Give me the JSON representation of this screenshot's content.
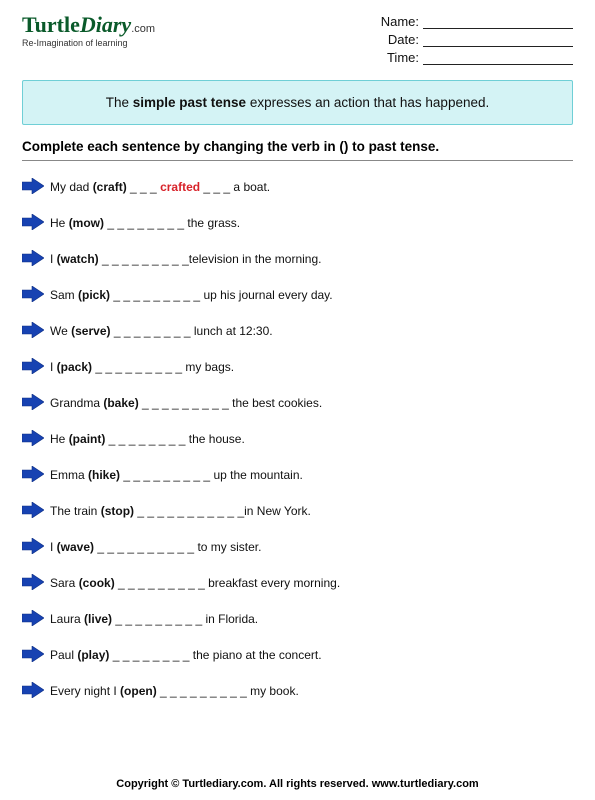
{
  "logo": {
    "word1": "Turtle",
    "word2": "Diary",
    "dotcom": ".com",
    "tagline": "Re-Imagination of learning"
  },
  "fields": {
    "name_label": "Name:",
    "date_label": "Date:",
    "time_label": "Time:"
  },
  "rule": {
    "pre": "The ",
    "bold": "simple past tense",
    "post": " expresses an action that has happened."
  },
  "instruction": "Complete each sentence by changing the verb in () to past tense.",
  "colors": {
    "arrow_fill": "#1742b2",
    "arrow_stroke": "#0e2f85",
    "box_bg": "#d4f3f5",
    "box_border": "#6fcfd6",
    "answer": "#d8232a",
    "logo": "#0a5a2a"
  },
  "items": [
    {
      "pre": "My dad ",
      "verb": "(craft)",
      "blanks": " _ _ _ ",
      "answer": "crafted",
      "post": " _ _ _ a boat."
    },
    {
      "pre": "He ",
      "verb": "(mow)",
      "blanks": " _ _ _ _ _ _ _ _ ",
      "answer": "",
      "post": "the grass."
    },
    {
      "pre": "I ",
      "verb": "(watch)",
      "blanks": " _ _ _ _ _ _ _ _ _",
      "answer": "",
      "post": "television in the morning."
    },
    {
      "pre": "Sam ",
      "verb": "(pick)",
      "blanks": " _ _ _ _ _ _ _ _ _ ",
      "answer": "",
      "post": "up his journal every day."
    },
    {
      "pre": "We ",
      "verb": "(serve)",
      "blanks": " _ _ _ _ _ _ _ _ ",
      "answer": "",
      "post": "lunch at 12:30."
    },
    {
      "pre": "I ",
      "verb": "(pack)",
      "blanks": " _ _ _ _ _ _ _ _ _ ",
      "answer": "",
      "post": "my bags."
    },
    {
      "pre": "Grandma ",
      "verb": "(bake)",
      "blanks": " _ _ _ _ _ _ _ _ _ ",
      "answer": "",
      "post": "the best cookies."
    },
    {
      "pre": "He ",
      "verb": "(paint)",
      "blanks": " _ _ _ _ _ _ _ _ ",
      "answer": "",
      "post": "the house."
    },
    {
      "pre": "Emma ",
      "verb": "(hike)",
      "blanks": " _ _ _ _ _ _ _ _ _ ",
      "answer": "",
      "post": "up the mountain."
    },
    {
      "pre": "The train ",
      "verb": "(stop)",
      "blanks": " _ _ _ _ _ _ _ _ _ _ _",
      "answer": "",
      "post": "in New York."
    },
    {
      "pre": "I ",
      "verb": "(wave)",
      "blanks": " _ _ _ _ _ _ _ _ _ _  ",
      "answer": "",
      "post": "to my sister."
    },
    {
      "pre": "Sara ",
      "verb": "(cook)",
      "blanks": " _ _ _ _ _ _ _ _ _ ",
      "answer": "",
      "post": "breakfast every morning."
    },
    {
      "pre": "Laura ",
      "verb": "(live)",
      "blanks": " _ _ _ _ _ _ _ _ _ ",
      "answer": "",
      "post": "in Florida."
    },
    {
      "pre": "Paul ",
      "verb": "(play)",
      "blanks": " _ _ _ _ _ _ _ _ ",
      "answer": "",
      "post": "the piano at the concert."
    },
    {
      "pre": "Every night I ",
      "verb": "(open)",
      "blanks": " _ _ _ _ _ _ _ _ _ ",
      "answer": "",
      "post": "my book."
    }
  ],
  "footer": "Copyright © Turtlediary.com. All rights reserved.   www.turtlediary.com"
}
